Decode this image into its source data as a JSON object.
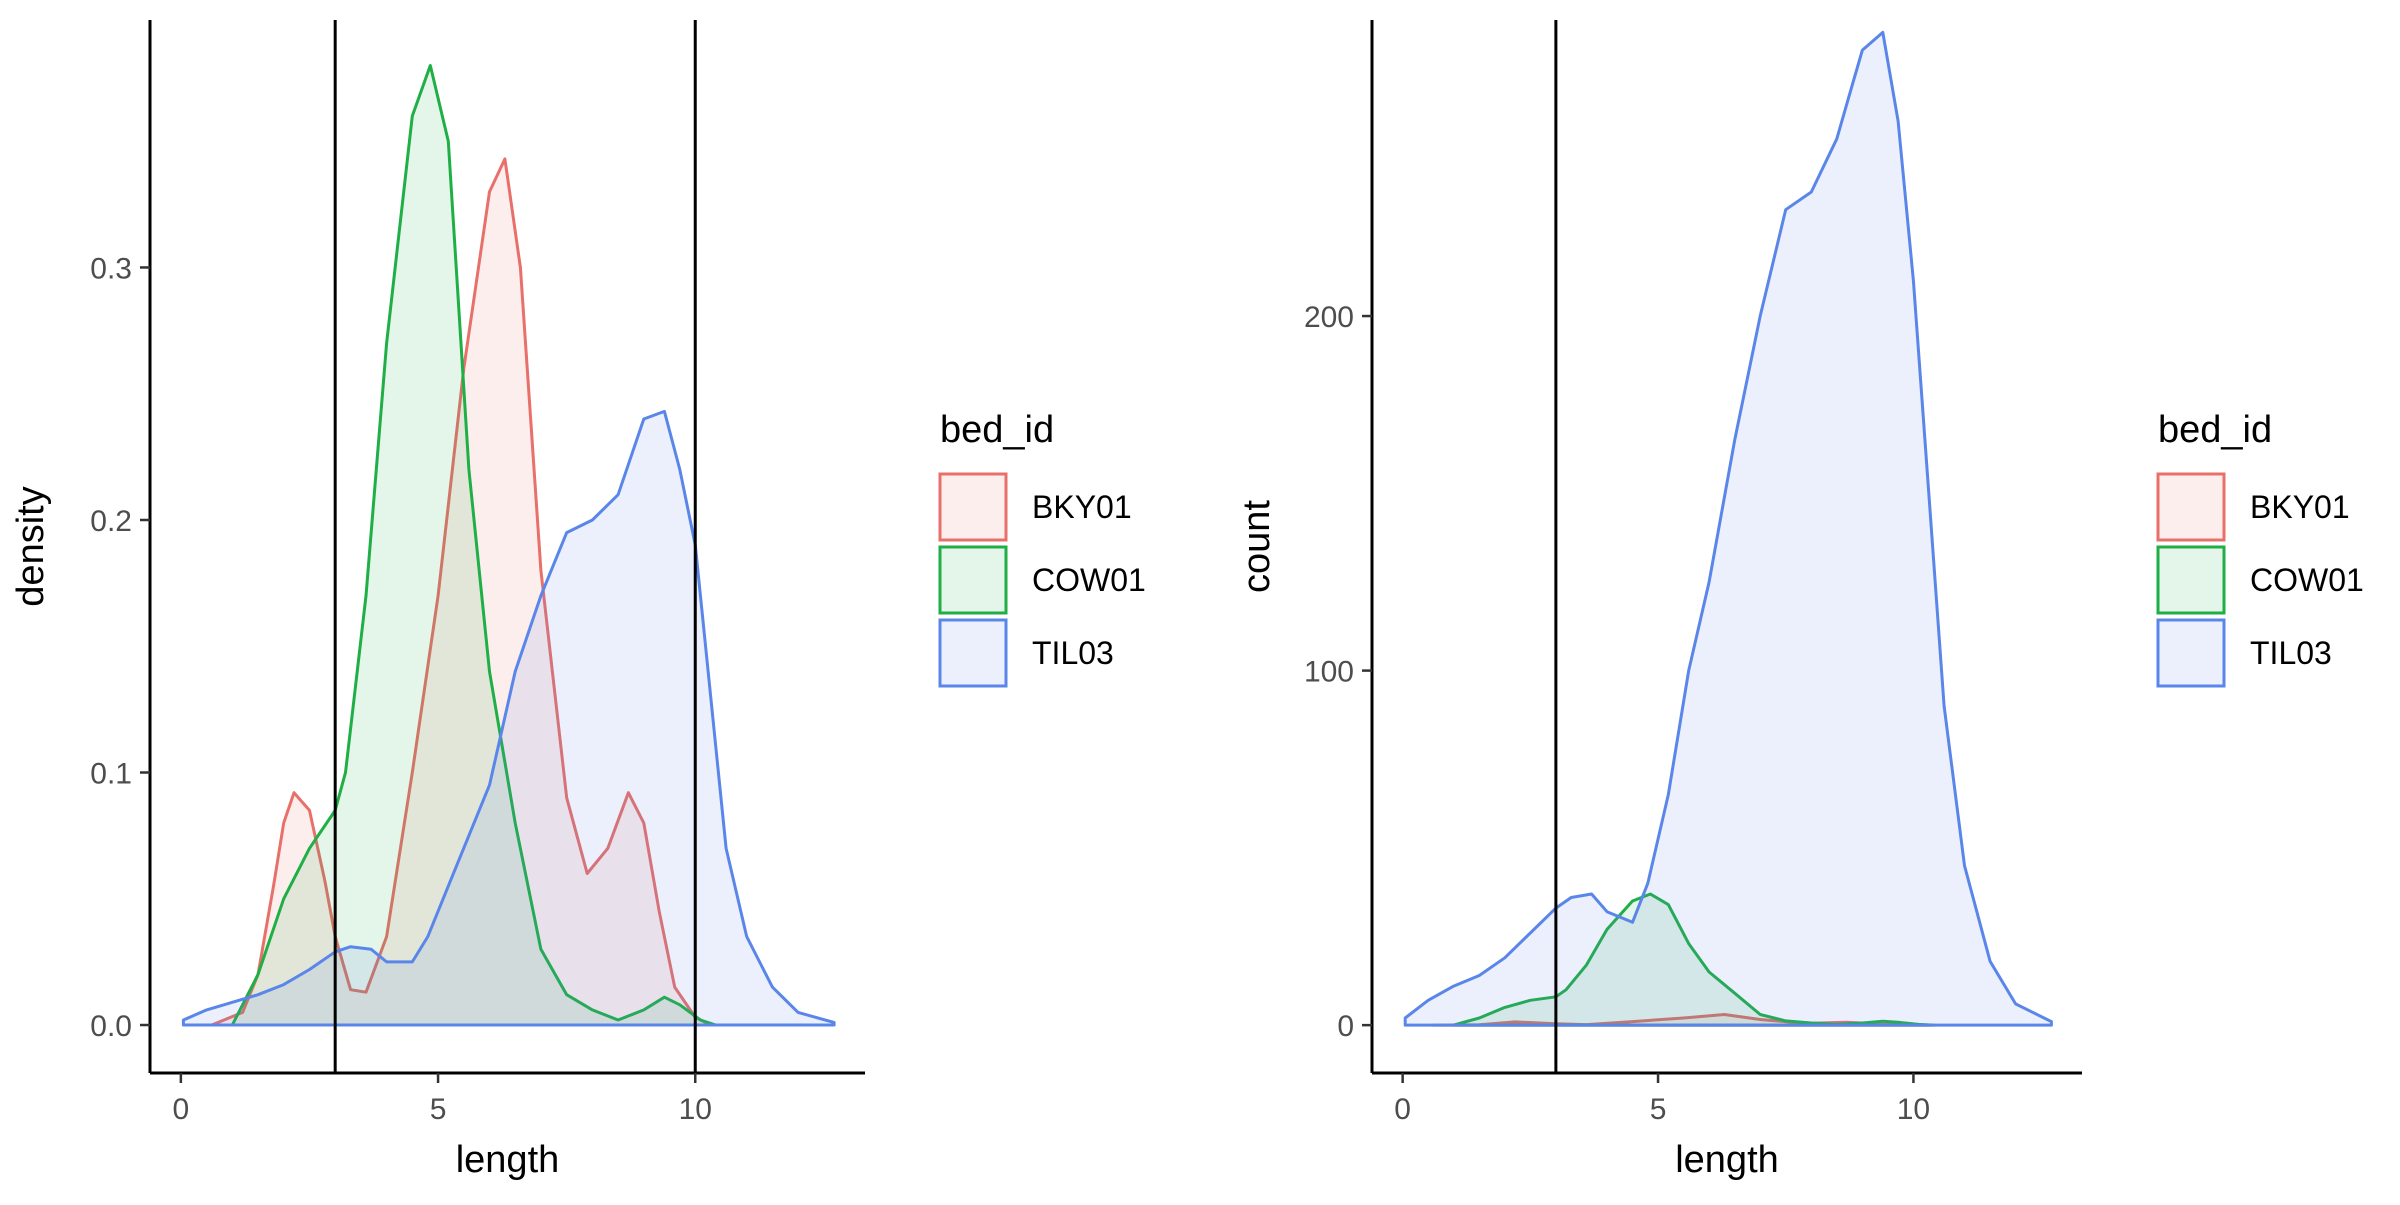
{
  "chart_data": [
    {
      "type": "area",
      "xlabel": "length",
      "ylabel": "density",
      "xlim": [
        -0.6,
        13.3
      ],
      "ylim": [
        -0.019,
        0.398
      ],
      "xticks": [
        "0",
        "5",
        "10"
      ],
      "xtick_values": [
        0,
        5,
        10
      ],
      "yticks": [
        "0.0",
        "0.1",
        "0.2",
        "0.3"
      ],
      "ytick_values": [
        0,
        0.1,
        0.2,
        0.3
      ],
      "vlines": [
        3,
        10
      ],
      "legend": {
        "title": "bed_id",
        "position": "right",
        "labels": [
          "BKY01",
          "COW01",
          "TIL03"
        ]
      },
      "series": [
        {
          "name": "BKY01",
          "color": "#e8706a",
          "x": [
            0.6,
            1.2,
            1.5,
            1.8,
            2.0,
            2.2,
            2.5,
            2.8,
            3.0,
            3.3,
            3.6,
            4.0,
            4.5,
            5.0,
            5.5,
            6.0,
            6.3,
            6.6,
            7.0,
            7.5,
            7.9,
            8.3,
            8.7,
            9.0,
            9.3,
            9.6,
            10.0,
            10.3
          ],
          "y": [
            0,
            0.005,
            0.02,
            0.055,
            0.08,
            0.092,
            0.085,
            0.057,
            0.035,
            0.014,
            0.013,
            0.035,
            0.1,
            0.17,
            0.26,
            0.33,
            0.343,
            0.3,
            0.18,
            0.09,
            0.06,
            0.07,
            0.092,
            0.08,
            0.045,
            0.015,
            0.003,
            0
          ]
        },
        {
          "name": "COW01",
          "color": "#1faf46",
          "x": [
            1.0,
            1.5,
            2.0,
            2.5,
            3.0,
            3.2,
            3.6,
            4.0,
            4.5,
            4.85,
            5.2,
            5.6,
            6.0,
            6.5,
            7.0,
            7.5,
            8.0,
            8.5,
            9.0,
            9.4,
            9.7,
            10.1,
            10.4
          ],
          "y": [
            0,
            0.02,
            0.05,
            0.07,
            0.085,
            0.1,
            0.17,
            0.27,
            0.36,
            0.38,
            0.35,
            0.22,
            0.14,
            0.08,
            0.03,
            0.012,
            0.006,
            0.002,
            0.006,
            0.011,
            0.008,
            0.002,
            0
          ]
        },
        {
          "name": "TIL03",
          "color": "#5a86ea",
          "x": [
            0.05,
            0.5,
            1.0,
            1.5,
            2.0,
            2.5,
            3.0,
            3.3,
            3.7,
            4.0,
            4.5,
            4.8,
            5.2,
            5.6,
            6.0,
            6.5,
            7.0,
            7.5,
            8.0,
            8.5,
            8.8,
            9.0,
            9.4,
            9.7,
            10.0,
            10.3,
            10.6,
            11.0,
            11.5,
            12.0,
            12.7
          ],
          "y": [
            0.002,
            0.006,
            0.009,
            0.012,
            0.016,
            0.022,
            0.029,
            0.031,
            0.03,
            0.025,
            0.025,
            0.035,
            0.055,
            0.075,
            0.095,
            0.14,
            0.17,
            0.195,
            0.2,
            0.21,
            0.228,
            0.24,
            0.243,
            0.22,
            0.19,
            0.13,
            0.07,
            0.035,
            0.015,
            0.005,
            0.001
          ]
        }
      ]
    },
    {
      "type": "area",
      "xlabel": "length",
      "ylabel": "count",
      "xlim": [
        -0.6,
        13.3
      ],
      "ylim": [
        -13.5,
        283.5
      ],
      "xticks": [
        "0",
        "5",
        "10"
      ],
      "xtick_values": [
        0,
        5,
        10
      ],
      "yticks": [
        "0",
        "100",
        "200"
      ],
      "ytick_values": [
        0,
        100,
        200
      ],
      "vlines": [
        3
      ],
      "legend": {
        "title": "bed_id",
        "position": "right",
        "labels": [
          "BKY01",
          "COW01",
          "TIL03"
        ]
      },
      "series": [
        {
          "name": "BKY01",
          "color": "#e8706a",
          "x": [
            0.6,
            1.5,
            2.2,
            3.0,
            3.6,
            4.5,
            5.5,
            6.3,
            7.0,
            7.9,
            8.7,
            9.5,
            10.3
          ],
          "y": [
            0,
            0.1,
            0.9,
            0.4,
            0.15,
            1.0,
            2.0,
            3.0,
            1.6,
            0.5,
            0.8,
            0.2,
            0
          ]
        },
        {
          "name": "COW01",
          "color": "#1faf46",
          "x": [
            1.0,
            1.5,
            2.0,
            2.5,
            3.0,
            3.2,
            3.6,
            4.0,
            4.5,
            4.85,
            5.2,
            5.6,
            6.0,
            6.5,
            7.0,
            7.5,
            8.0,
            8.5,
            9.0,
            9.4,
            9.7,
            10.1,
            10.4
          ],
          "y": [
            0,
            2,
            5,
            7,
            8,
            10,
            17,
            27,
            35,
            37,
            34,
            23,
            15,
            9,
            3,
            1.2,
            0.6,
            0.2,
            0.6,
            1.1,
            0.8,
            0.2,
            0
          ]
        },
        {
          "name": "TIL03",
          "color": "#5a86ea",
          "x": [
            0.05,
            0.5,
            1.0,
            1.5,
            2.0,
            2.5,
            3.0,
            3.3,
            3.7,
            4.0,
            4.5,
            4.8,
            5.2,
            5.6,
            6.0,
            6.5,
            7.0,
            7.5,
            8.0,
            8.5,
            8.8,
            9.0,
            9.4,
            9.7,
            10.0,
            10.3,
            10.6,
            11.0,
            11.5,
            12.0,
            12.7
          ],
          "y": [
            2,
            7,
            11,
            14,
            19,
            26,
            33,
            36,
            37,
            32,
            29,
            40,
            65,
            100,
            125,
            165,
            200,
            230,
            235,
            250,
            265,
            275,
            280,
            255,
            210,
            150,
            90,
            45,
            18,
            6,
            1
          ]
        }
      ]
    }
  ]
}
